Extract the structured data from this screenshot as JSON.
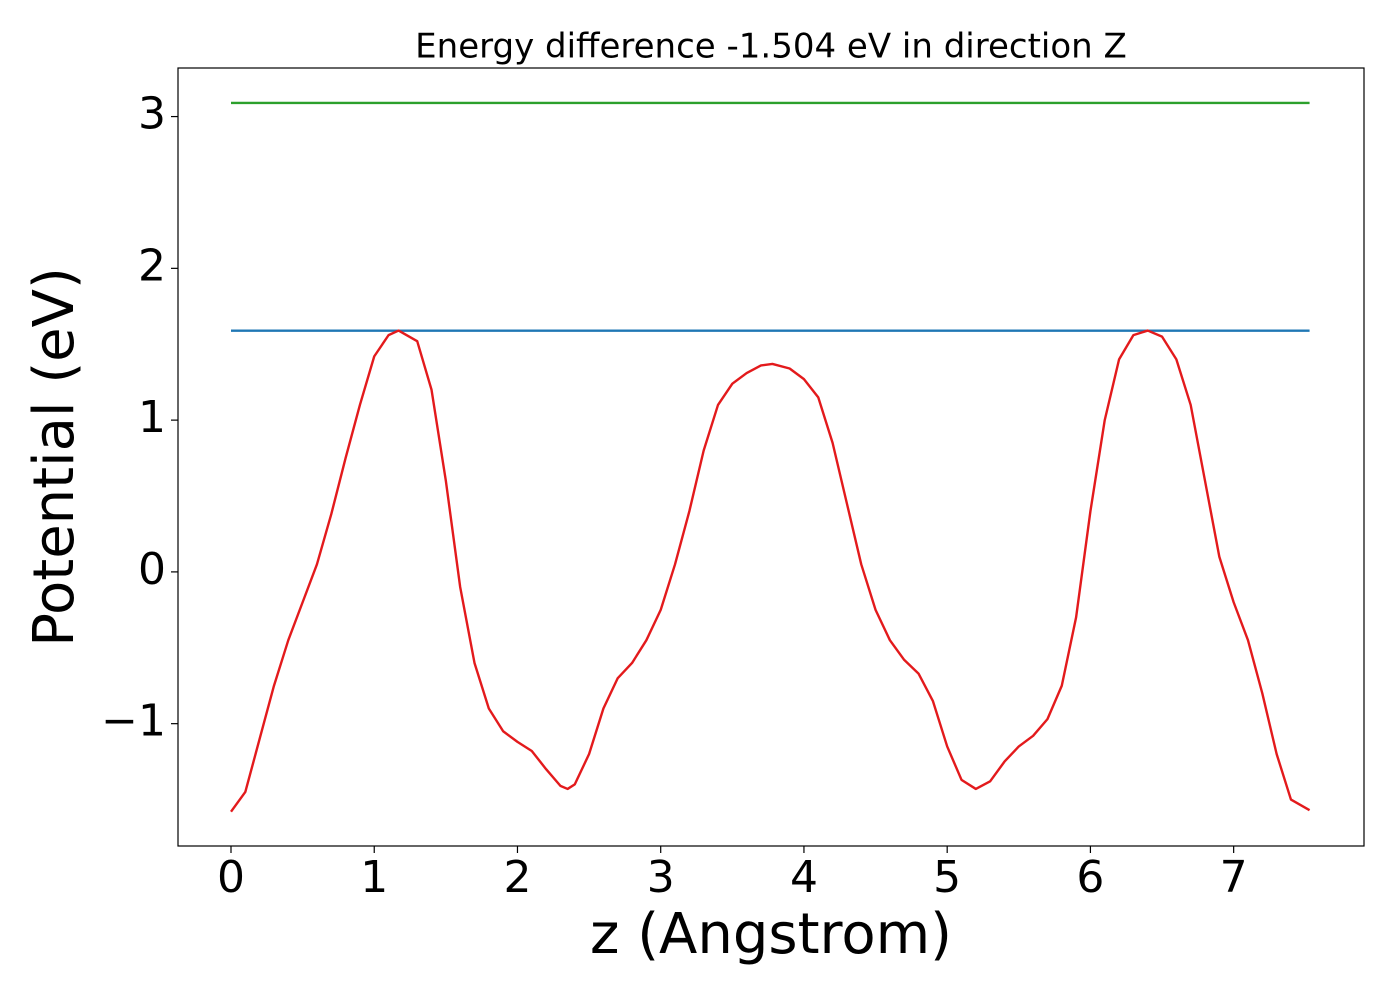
{
  "chart_data": {
    "type": "line",
    "title": "Energy difference -1.504 eV in direction Z",
    "xlabel": "z (Angstrom)",
    "ylabel": "Potential (eV)",
    "xlim": [
      -0.37,
      7.91
    ],
    "ylim": [
      -1.806,
      3.32
    ],
    "xticks": [
      0,
      1,
      2,
      3,
      4,
      5,
      6,
      7
    ],
    "yticks": [
      {
        "value": -1,
        "label": "−1"
      },
      0,
      1,
      2,
      3
    ],
    "series": [
      {
        "color": "#2ca02c",
        "x": [
          0,
          7.53
        ],
        "values": [
          3.09,
          3.09
        ]
      },
      {
        "color": "#1f77b4",
        "x": [
          0,
          7.53
        ],
        "values": [
          1.589,
          1.589
        ]
      },
      {
        "color": "#e31a1c",
        "x": [
          0,
          0.1,
          0.2,
          0.3,
          0.4,
          0.5,
          0.6,
          0.7,
          0.8,
          0.9,
          1.0,
          1.1,
          1.17,
          1.3,
          1.4,
          1.5,
          1.6,
          1.7,
          1.8,
          1.9,
          2.0,
          2.1,
          2.2,
          2.3,
          2.35,
          2.4,
          2.5,
          2.6,
          2.7,
          2.8,
          2.9,
          3.0,
          3.1,
          3.2,
          3.3,
          3.4,
          3.5,
          3.6,
          3.7,
          3.78,
          3.9,
          4.0,
          4.1,
          4.2,
          4.3,
          4.4,
          4.5,
          4.6,
          4.7,
          4.8,
          4.9,
          5.0,
          5.1,
          5.2,
          5.3,
          5.4,
          5.5,
          5.6,
          5.7,
          5.8,
          5.9,
          6.0,
          6.1,
          6.2,
          6.3,
          6.4,
          6.5,
          6.6,
          6.7,
          6.8,
          6.9,
          7.0,
          7.1,
          7.2,
          7.3,
          7.4,
          7.53
        ],
        "values": [
          -1.58,
          -1.45,
          -1.1,
          -0.75,
          -0.45,
          -0.2,
          0.05,
          0.38,
          0.75,
          1.1,
          1.42,
          1.56,
          1.59,
          1.52,
          1.2,
          0.6,
          -0.1,
          -0.6,
          -0.9,
          -1.05,
          -1.12,
          -1.18,
          -1.3,
          -1.41,
          -1.43,
          -1.4,
          -1.2,
          -0.9,
          -0.7,
          -0.6,
          -0.45,
          -0.25,
          0.05,
          0.4,
          0.8,
          1.1,
          1.24,
          1.31,
          1.36,
          1.37,
          1.34,
          1.27,
          1.15,
          0.85,
          0.45,
          0.05,
          -0.25,
          -0.45,
          -0.58,
          -0.67,
          -0.85,
          -1.15,
          -1.37,
          -1.43,
          -1.38,
          -1.25,
          -1.15,
          -1.08,
          -0.97,
          -0.75,
          -0.3,
          0.4,
          1.0,
          1.4,
          1.56,
          1.59,
          1.55,
          1.4,
          1.1,
          0.6,
          0.1,
          -0.2,
          -0.45,
          -0.8,
          -1.2,
          -1.5,
          -1.57
        ]
      }
    ]
  }
}
